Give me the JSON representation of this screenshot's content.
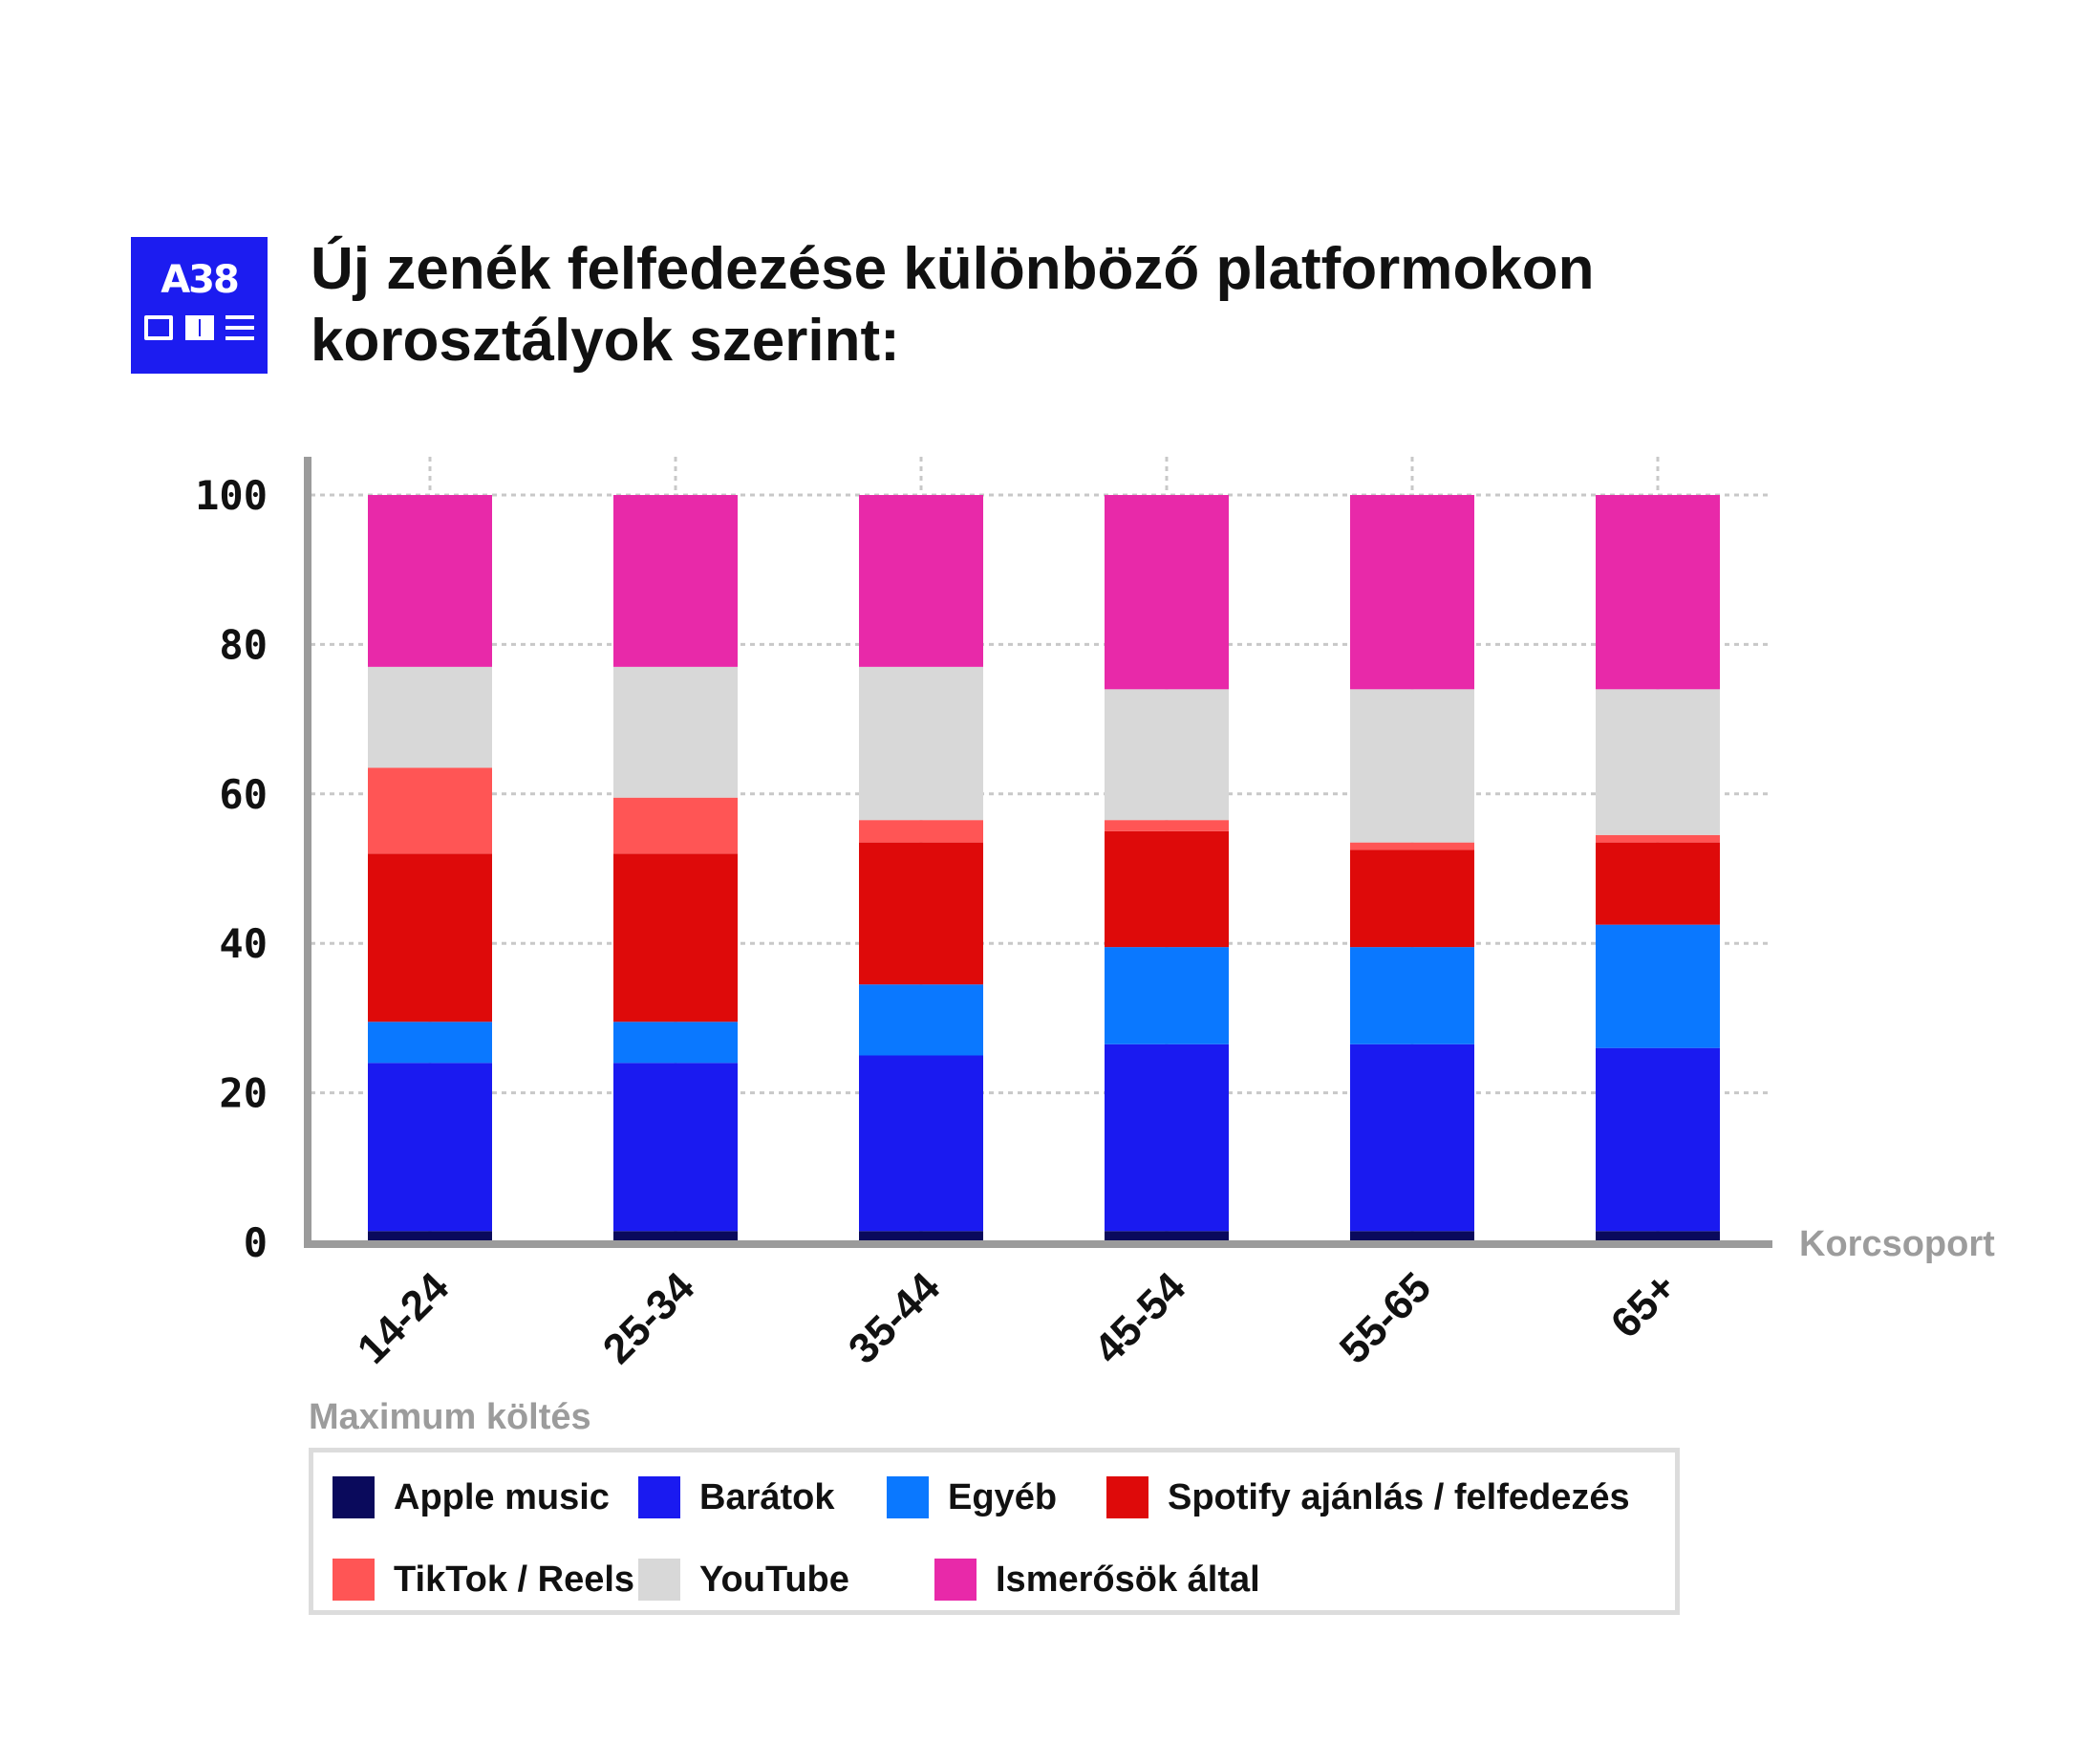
{
  "logo": {
    "text": "A38"
  },
  "title": {
    "line1": "Új zenék felfedezése különböző platformokon",
    "line2": "korosztályok szerint:"
  },
  "legend_heading": "Maximum költés",
  "chart_data": {
    "type": "bar",
    "stacked": true,
    "title": "Új zenék felfedezése különböző platformokon korosztályok szerint:",
    "xlabel": "Korcsoport",
    "ylabel": "",
    "ylim": [
      0,
      100
    ],
    "yticks": [
      0,
      20,
      40,
      60,
      80,
      100
    ],
    "grid": true,
    "legend_position": "bottom",
    "categories": [
      "14-24",
      "25-34",
      "35-44",
      "45-54",
      "55-65",
      "65+"
    ],
    "series": [
      {
        "name": "Apple music",
        "color": "#0a0a5c",
        "values": [
          1.5,
          1.5,
          1.5,
          1.5,
          1.5,
          1.5
        ]
      },
      {
        "name": "Barátok",
        "color": "#1a1af0",
        "values": [
          22.5,
          22.5,
          23.5,
          25,
          25,
          24.5
        ]
      },
      {
        "name": "Egyéb",
        "color": "#0a78ff",
        "values": [
          5.5,
          5.5,
          9.5,
          13,
          13,
          16.5
        ]
      },
      {
        "name": "Spotify ajánlás / felfedezés",
        "color": "#de0a0a",
        "values": [
          22.5,
          22.5,
          19,
          15.5,
          13,
          11
        ]
      },
      {
        "name": "TikTok / Reels",
        "color": "#ff5555",
        "values": [
          11.5,
          7.5,
          3,
          1.5,
          1,
          1
        ]
      },
      {
        "name": "YouTube",
        "color": "#d8d8d8",
        "values": [
          13.5,
          17.5,
          20.5,
          17.5,
          20.5,
          19.5
        ]
      },
      {
        "name": "Ismerősök által",
        "color": "#e829a9",
        "values": [
          23,
          23,
          23,
          26,
          26,
          26
        ]
      }
    ]
  }
}
